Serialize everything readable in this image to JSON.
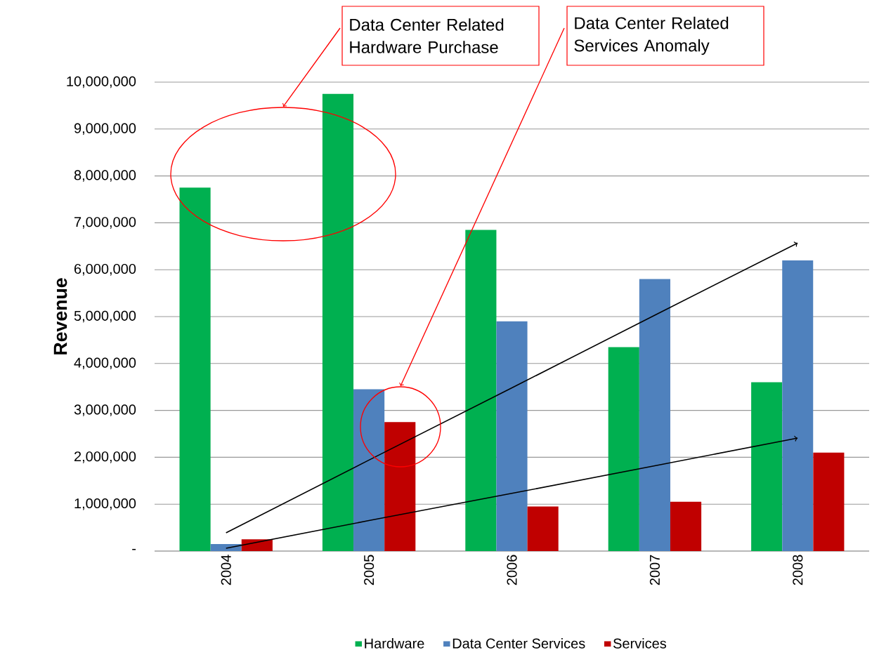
{
  "chart_data": {
    "type": "bar",
    "ylabel": "Revenue",
    "categories": [
      "2004",
      "2005",
      "2006",
      "2007",
      "2008"
    ],
    "series": [
      {
        "name": "Hardware",
        "color": "#00b050",
        "values": [
          7750000,
          9750000,
          6850000,
          4350000,
          3600000
        ]
      },
      {
        "name": "Data Center Services",
        "color": "#4f81bd",
        "values": [
          150000,
          3450000,
          4900000,
          5800000,
          6200000
        ]
      },
      {
        "name": "Services",
        "color": "#c00000",
        "values": [
          250000,
          2750000,
          950000,
          1050000,
          2100000
        ]
      },
      {
        "type": "line",
        "color": "#000000",
        "values": [
          390000,
          1940000,
          3480000,
          5030000,
          6570000
        ]
      },
      {
        "type": "line",
        "color": "#000000",
        "values": [
          60000,
          650000,
          1230000,
          1820000,
          2410000
        ]
      }
    ],
    "ylim": [
      0,
      10000000
    ],
    "yticks": [
      {
        "value": 0,
        "label": "-"
      },
      {
        "value": 1000000,
        "label": "1,000,000"
      },
      {
        "value": 2000000,
        "label": "2,000,000"
      },
      {
        "value": 3000000,
        "label": "3,000,000"
      },
      {
        "value": 4000000,
        "label": "4,000,000"
      },
      {
        "value": 5000000,
        "label": "5,000,000"
      },
      {
        "value": 6000000,
        "label": "6,000,000"
      },
      {
        "value": 7000000,
        "label": "7,000,000"
      },
      {
        "value": 8000000,
        "label": "8,000,000"
      },
      {
        "value": 9000000,
        "label": "9,000,000"
      },
      {
        "value": 10000000,
        "label": "10,000,000"
      }
    ],
    "grid": "y",
    "legend": "bottom",
    "annotations": [
      "Data Center Related Hardware Purchase",
      "Data Center Related Services Anomaly"
    ]
  }
}
